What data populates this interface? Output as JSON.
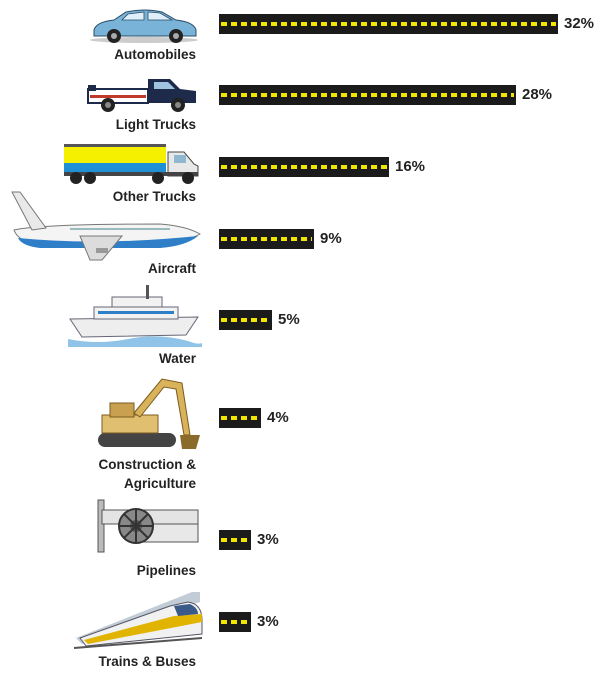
{
  "chart_data": {
    "type": "bar",
    "orientation": "horizontal",
    "categories": [
      "Automobiles",
      "Light Trucks",
      "Other Trucks",
      "Aircraft",
      "Water",
      "Construction & Agriculture",
      "Pipelines",
      "Trains & Buses"
    ],
    "category_lines": [
      [
        "Automobiles"
      ],
      [
        "Light Trucks"
      ],
      [
        "Other Trucks"
      ],
      [
        "Aircraft"
      ],
      [
        "Water"
      ],
      [
        "Construction &",
        "Agriculture"
      ],
      [
        "Pipelines"
      ],
      [
        "Trains & Buses"
      ]
    ],
    "values": [
      32,
      28,
      16,
      9,
      5,
      4,
      3,
      3
    ],
    "value_labels": [
      "32%",
      "28%",
      "16%",
      "9%",
      "5%",
      "4%",
      "3%",
      "3%"
    ],
    "icons": [
      "car-icon",
      "pickup-truck-icon",
      "semi-truck-icon",
      "airplane-icon",
      "ship-icon",
      "excavator-icon",
      "pipeline-icon",
      "train-icon"
    ],
    "bar_color": "#1b1b1b",
    "dash_color": "#f2e600",
    "title": "",
    "xlabel": "",
    "ylabel": "",
    "xlim": [
      0,
      32
    ],
    "grid": false,
    "legend": "none"
  }
}
